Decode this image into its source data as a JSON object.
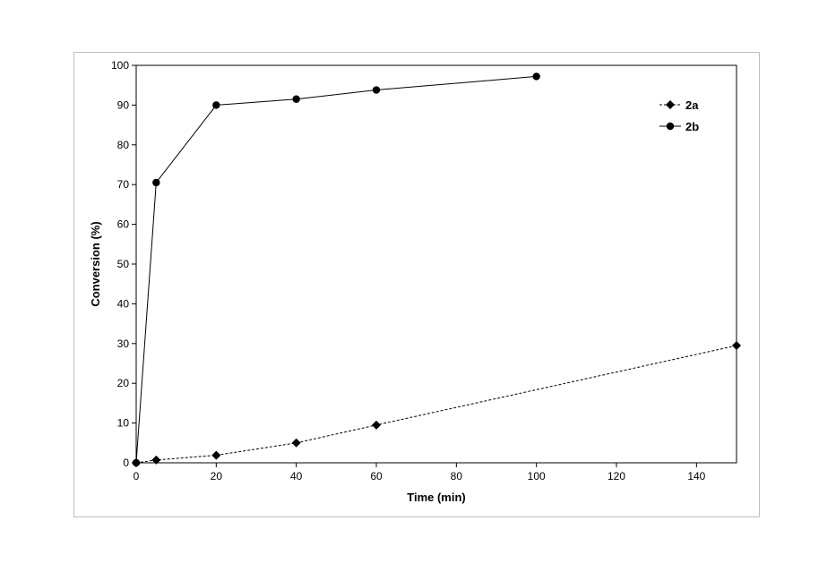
{
  "chart_data": {
    "type": "line",
    "title": "",
    "xlabel": "Time (min)",
    "ylabel": "Conversion (%)",
    "xlim": [
      0,
      150
    ],
    "ylim": [
      0,
      100
    ],
    "xticks": [
      0,
      20,
      40,
      60,
      80,
      100,
      120,
      140
    ],
    "yticks": [
      0,
      10,
      20,
      30,
      40,
      50,
      60,
      70,
      80,
      90,
      100
    ],
    "grid": false,
    "legend_position": "top-right",
    "series": [
      {
        "name": "2a",
        "marker": "diamond",
        "line_style": "dashed",
        "color": "#000000",
        "x": [
          0,
          5,
          20,
          40,
          60,
          150
        ],
        "y": [
          0,
          0.7,
          1.9,
          5.0,
          9.5,
          29.5
        ]
      },
      {
        "name": "2b",
        "marker": "circle",
        "line_style": "solid",
        "color": "#000000",
        "x": [
          0,
          5,
          20,
          40,
          60,
          100
        ],
        "y": [
          0,
          70.5,
          90.0,
          91.5,
          93.8,
          97.2
        ]
      }
    ]
  }
}
